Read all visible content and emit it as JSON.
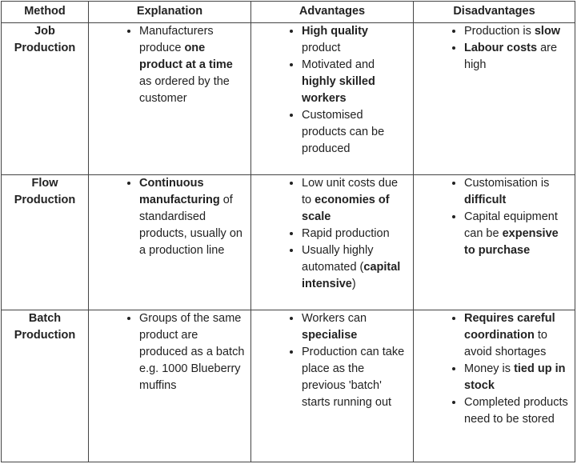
{
  "header": [
    "Method",
    "Explanation",
    "Advantages",
    "Disadvantages"
  ],
  "rows": [
    {
      "method": [
        "Job",
        "Production"
      ],
      "cells": [
        [
          [
            {
              "text": "Manufacturers produce "
            },
            {
              "text": "one product at a time",
              "bold": true
            },
            {
              "text": " as ordered by the customer"
            }
          ]
        ],
        [
          [
            {
              "text": "High quality",
              "bold": true
            },
            {
              "text": " product"
            }
          ],
          [
            {
              "text": "Motivated and "
            },
            {
              "text": "highly skilled workers",
              "bold": true
            }
          ],
          [
            {
              "text": "Customised products can be produced"
            }
          ]
        ],
        [
          [
            {
              "text": "Production is "
            },
            {
              "text": "slow",
              "bold": true
            }
          ],
          [
            {
              "text": "Labour costs",
              "bold": true
            },
            {
              "text": " are high"
            }
          ]
        ]
      ]
    },
    {
      "method": [
        "Flow",
        "Production"
      ],
      "cells": [
        [
          [
            {
              "text": "Continuous manufacturing",
              "bold": true
            },
            {
              "text": " of standardised products, usually on a production line"
            }
          ]
        ],
        [
          [
            {
              "text": "Low unit costs due to "
            },
            {
              "text": "economies of scale",
              "bold": true
            }
          ],
          [
            {
              "text": "Rapid production"
            }
          ],
          [
            {
              "text": "Usually highly automated ("
            },
            {
              "text": "capital intensive",
              "bold": true
            },
            {
              "text": ")"
            }
          ]
        ],
        [
          [
            {
              "text": "Customisation is "
            },
            {
              "text": "difficult",
              "bold": true
            }
          ],
          [
            {
              "text": "Capital equipment can be "
            },
            {
              "text": "expensive to purchase",
              "bold": true
            }
          ]
        ]
      ]
    },
    {
      "method": [
        "Batch",
        "Production"
      ],
      "cells": [
        [
          [
            {
              "text": "Groups of the same product are produced as a batch e.g. 1000 Blueberry muffins"
            }
          ]
        ],
        [
          [
            {
              "text": "Workers can "
            },
            {
              "text": "specialise",
              "bold": true
            }
          ],
          [
            {
              "text": "Production can take place as the previous 'batch' starts running out"
            }
          ]
        ],
        [
          [
            {
              "text": "Requires careful coordination",
              "bold": true
            },
            {
              "text": " to avoid shortages"
            }
          ],
          [
            {
              "text": "Money is "
            },
            {
              "text": "tied up in stock",
              "bold": true
            }
          ],
          [
            {
              "text": "Completed products need to be stored"
            }
          ]
        ]
      ]
    }
  ]
}
